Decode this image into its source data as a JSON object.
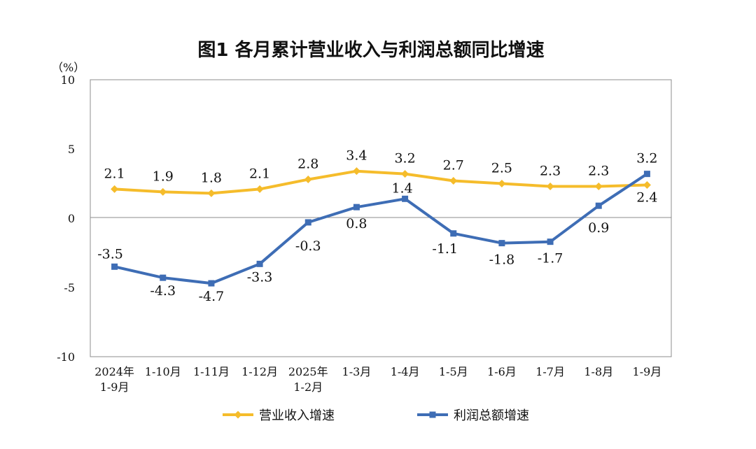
{
  "chart_data": {
    "type": "line",
    "title": "图1  各月累计营业收入与利润总额同比增速",
    "unit_label": "（%）",
    "xlabel": "",
    "ylabel": "",
    "ylim": [
      -10,
      10
    ],
    "yticks": [
      "10",
      "5",
      "0",
      "-5",
      "-10"
    ],
    "categories": [
      [
        "2024年",
        "1-9月"
      ],
      [
        "1-10月"
      ],
      [
        "1-11月"
      ],
      [
        "1-12月"
      ],
      [
        "2025年",
        "1-2月"
      ],
      [
        "1-3月"
      ],
      [
        "1-4月"
      ],
      [
        "1-5月"
      ],
      [
        "1-6月"
      ],
      [
        "1-7月"
      ],
      [
        "1-8月"
      ],
      [
        "1-9月"
      ]
    ],
    "series": [
      {
        "name": "营业收入增速",
        "color": "#F5BC2B",
        "marker": "diamond",
        "values": [
          2.1,
          1.9,
          1.8,
          2.1,
          2.8,
          3.4,
          3.2,
          2.7,
          2.5,
          2.3,
          2.3,
          2.4
        ],
        "labels": [
          "2.1",
          "1.9",
          "1.8",
          "2.1",
          "2.8",
          "3.4",
          "3.2",
          "2.7",
          "2.5",
          "2.3",
          "2.3",
          "2.4"
        ]
      },
      {
        "name": "利润总额增速",
        "color": "#3E6DB5",
        "marker": "square",
        "values": [
          -3.5,
          -4.3,
          -4.7,
          -3.3,
          -0.3,
          0.8,
          1.4,
          -1.1,
          -1.8,
          -1.7,
          0.9,
          3.2
        ],
        "labels": [
          "-3.5",
          "-4.3",
          "-4.7",
          "-3.3",
          "-0.3",
          "0.8",
          "1.4",
          "-1.1",
          "-1.8",
          "-1.7",
          "0.9",
          "3.2"
        ]
      }
    ],
    "grid": false,
    "legend_position": "bottom"
  }
}
